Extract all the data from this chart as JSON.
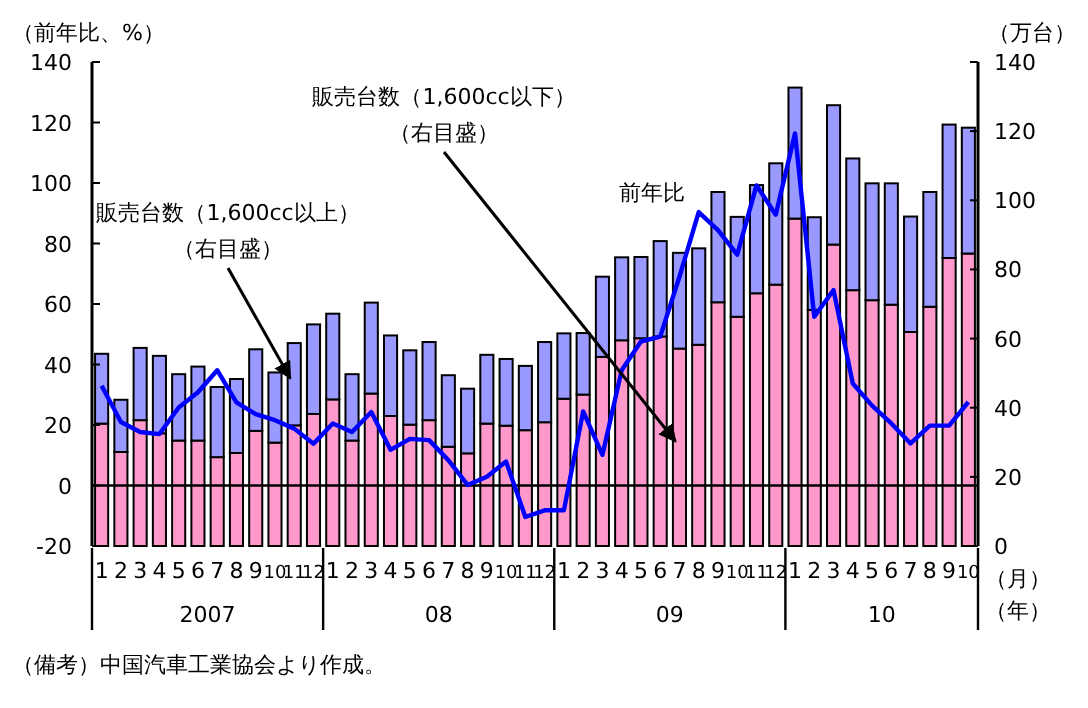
{
  "chart_data": {
    "type": "bar",
    "stacked": true,
    "ylabel": "（前年比、%）",
    "y2label": "（万台）",
    "xlabel": "（月）（年）",
    "categories": [
      "1",
      "2",
      "3",
      "4",
      "5",
      "6",
      "7",
      "8",
      "9",
      "10",
      "11",
      "12",
      "1",
      "2",
      "3",
      "4",
      "5",
      "6",
      "7",
      "8",
      "9",
      "10",
      "11",
      "12",
      "1",
      "2",
      "3",
      "4",
      "5",
      "6",
      "7",
      "8",
      "9",
      "10",
      "11",
      "12",
      "1",
      "2",
      "3",
      "4",
      "5",
      "6",
      "7",
      "8",
      "9",
      "10"
    ],
    "series": [
      {
        "name": "販売台数（1,600cc以下）（右目盛）",
        "color": "#ff99cc",
        "axis": "y2",
        "values": [
          35.4,
          27.2,
          36.4,
          32.6,
          30.5,
          30.5,
          25.7,
          26.9,
          33.3,
          29.9,
          34.9,
          38.2,
          42.4,
          30.5,
          44.1,
          37.6,
          35.1,
          36.4,
          28.7,
          26.8,
          35.4,
          34.8,
          33.5,
          35.8,
          42.6,
          43.8,
          54.7,
          59.5,
          60.1,
          60.6,
          57.1,
          58.2,
          70.5,
          66.3,
          73.1,
          75.6,
          94.7,
          68.3,
          87.2,
          74.0,
          71.1,
          69.8,
          61.9,
          69.2,
          83.3,
          84.6
        ]
      },
      {
        "name": "販売台数（1,600cc以上）（右目盛）",
        "color": "#9999ff",
        "axis": "y2",
        "values": [
          20.2,
          15.1,
          20.9,
          22.4,
          19.2,
          21.4,
          20.3,
          21.4,
          23.6,
          20.3,
          23.8,
          25.9,
          24.8,
          19.2,
          26.3,
          23.3,
          21.5,
          22.6,
          20.7,
          18.7,
          19.9,
          19.3,
          18.6,
          23.2,
          18.9,
          17.8,
          23.2,
          24.0,
          23.5,
          27.6,
          27.7,
          27.9,
          31.9,
          28.9,
          31.3,
          35.1,
          37.9,
          26.8,
          40.3,
          38.1,
          33.8,
          35.1,
          33.4,
          33.2,
          38.6,
          36.4
        ]
      },
      {
        "name": "前年比",
        "type": "line",
        "color": "#0000ff",
        "values": [
          33.0,
          21.0,
          17.7,
          17.0,
          25.8,
          30.8,
          38.1,
          27.5,
          23.6,
          21.6,
          18.8,
          13.8,
          20.5,
          17.7,
          24.3,
          11.8,
          15.4,
          15.0,
          8.4,
          0.2,
          2.9,
          7.9,
          -10.4,
          -8.2,
          -8.2,
          24.5,
          10.1,
          38.1,
          47.6,
          49.2,
          69.0,
          90.4,
          84.4,
          76.3,
          99.2,
          89.5,
          116.4,
          55.8,
          64.6,
          33.7,
          26.4,
          20.5,
          13.9,
          19.8,
          19.8,
          27.6
        ]
      }
    ],
    "ylim": [
      -20,
      140
    ],
    "yticks": [
      -20,
      0,
      20,
      40,
      60,
      80,
      100,
      120,
      140
    ],
    "y2lim": [
      0,
      140
    ],
    "y2ticks": [
      0,
      20,
      40,
      60,
      80,
      100,
      120,
      140
    ],
    "ref_lines": [
      {
        "axis": "y",
        "value": 0,
        "color": "#000000"
      }
    ],
    "annotations": [
      "2007",
      "08",
      "09",
      "10",
      "（備考）中国汽車工業協会より作成。"
    ],
    "legend": false,
    "grid": false
  }
}
